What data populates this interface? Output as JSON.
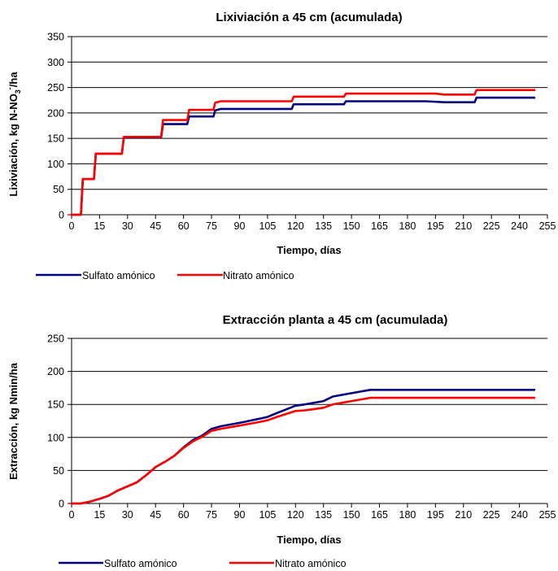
{
  "colors": {
    "sulfato": "#000080",
    "nitrato": "#ff0000",
    "grid": "#000000"
  },
  "chart_data": [
    {
      "type": "line",
      "title": "Lixiviación a 45 cm (acumulada)",
      "xlabel": "Tiempo, días",
      "ylabel_main": "Lixiviación,  kg N-NO",
      "ylabel_sub": "3",
      "ylabel_sup": "-",
      "ylabel_tail": "/ha",
      "xlim": [
        0,
        255
      ],
      "ylim": [
        0,
        350
      ],
      "x_ticks": [
        "0",
        "15",
        "30",
        "45",
        "60",
        "75",
        "90",
        "105",
        "120",
        "135",
        "150",
        "165",
        "180",
        "195",
        "210",
        "225",
        "240",
        "255"
      ],
      "y_ticks": [
        "0",
        "50",
        "100",
        "150",
        "200",
        "250",
        "300",
        "350"
      ],
      "grid": "horizontal",
      "legend": "bottom",
      "series": [
        {
          "name": "Sulfato amónico",
          "color": "#000080",
          "points": [
            [
              0,
              0
            ],
            [
              5,
              0
            ],
            [
              6,
              70
            ],
            [
              12,
              70
            ],
            [
              13,
              120
            ],
            [
              27,
              120
            ],
            [
              28,
              152
            ],
            [
              48,
              152
            ],
            [
              49,
              178
            ],
            [
              62,
              178
            ],
            [
              63,
              193
            ],
            [
              76,
              193
            ],
            [
              77,
              205
            ],
            [
              80,
              208
            ],
            [
              118,
              208
            ],
            [
              119,
              217
            ],
            [
              146,
              217
            ],
            [
              147,
              223
            ],
            [
              190,
              223
            ],
            [
              200,
              221
            ],
            [
              216,
              221
            ],
            [
              217,
              230
            ],
            [
              248,
              230
            ]
          ]
        },
        {
          "name": "Nitrato amónico",
          "color": "#ff0000",
          "points": [
            [
              0,
              0
            ],
            [
              5,
              0
            ],
            [
              6,
              70
            ],
            [
              12,
              70
            ],
            [
              13,
              120
            ],
            [
              27,
              120
            ],
            [
              28,
              153
            ],
            [
              48,
              153
            ],
            [
              49,
              186
            ],
            [
              62,
              186
            ],
            [
              63,
              206
            ],
            [
              76,
              206
            ],
            [
              77,
              220
            ],
            [
              80,
              223
            ],
            [
              118,
              223
            ],
            [
              119,
              232
            ],
            [
              146,
              232
            ],
            [
              147,
              238
            ],
            [
              195,
              238
            ],
            [
              200,
              236
            ],
            [
              216,
              236
            ],
            [
              217,
              245
            ],
            [
              248,
              245
            ]
          ]
        }
      ]
    },
    {
      "type": "line",
      "title": "Extracción planta  a 45 cm (acumulada)",
      "xlabel": "Tiempo, días",
      "ylabel_main": "Extracción,  kg Nmin/ha",
      "xlim": [
        0,
        255
      ],
      "ylim": [
        0,
        250
      ],
      "x_ticks": [
        "0",
        "15",
        "30",
        "45",
        "60",
        "75",
        "90",
        "105",
        "120",
        "135",
        "150",
        "165",
        "180",
        "195",
        "210",
        "225",
        "240",
        "255"
      ],
      "y_ticks": [
        "0",
        "50",
        "100",
        "150",
        "200",
        "250"
      ],
      "grid": "horizontal",
      "legend": "bottom",
      "series": [
        {
          "name": "Sulfato amónico",
          "color": "#000080",
          "points": [
            [
              0,
              0
            ],
            [
              5,
              0
            ],
            [
              10,
              3
            ],
            [
              15,
              7
            ],
            [
              20,
              12
            ],
            [
              25,
              20
            ],
            [
              30,
              26
            ],
            [
              35,
              32
            ],
            [
              40,
              43
            ],
            [
              45,
              55
            ],
            [
              50,
              63
            ],
            [
              55,
              72
            ],
            [
              60,
              85
            ],
            [
              65,
              96
            ],
            [
              70,
              103
            ],
            [
              75,
              113
            ],
            [
              80,
              117
            ],
            [
              90,
              122
            ],
            [
              100,
              128
            ],
            [
              105,
              131
            ],
            [
              110,
              137
            ],
            [
              120,
              148
            ],
            [
              125,
              150
            ],
            [
              135,
              155
            ],
            [
              140,
              162
            ],
            [
              150,
              167
            ],
            [
              160,
              172
            ],
            [
              248,
              172
            ]
          ]
        },
        {
          "name": "Nitrato amónico",
          "color": "#ff0000",
          "points": [
            [
              0,
              0
            ],
            [
              5,
              0
            ],
            [
              10,
              3
            ],
            [
              15,
              7
            ],
            [
              20,
              12
            ],
            [
              25,
              20
            ],
            [
              30,
              26
            ],
            [
              35,
              32
            ],
            [
              40,
              43
            ],
            [
              45,
              55
            ],
            [
              50,
              63
            ],
            [
              55,
              72
            ],
            [
              60,
              84
            ],
            [
              65,
              94
            ],
            [
              70,
              101
            ],
            [
              75,
              110
            ],
            [
              80,
              113
            ],
            [
              90,
              118
            ],
            [
              100,
              123
            ],
            [
              105,
              126
            ],
            [
              110,
              131
            ],
            [
              120,
              140
            ],
            [
              125,
              141
            ],
            [
              135,
              145
            ],
            [
              140,
              150
            ],
            [
              150,
              155
            ],
            [
              160,
              160
            ],
            [
              248,
              160
            ]
          ]
        }
      ]
    }
  ]
}
